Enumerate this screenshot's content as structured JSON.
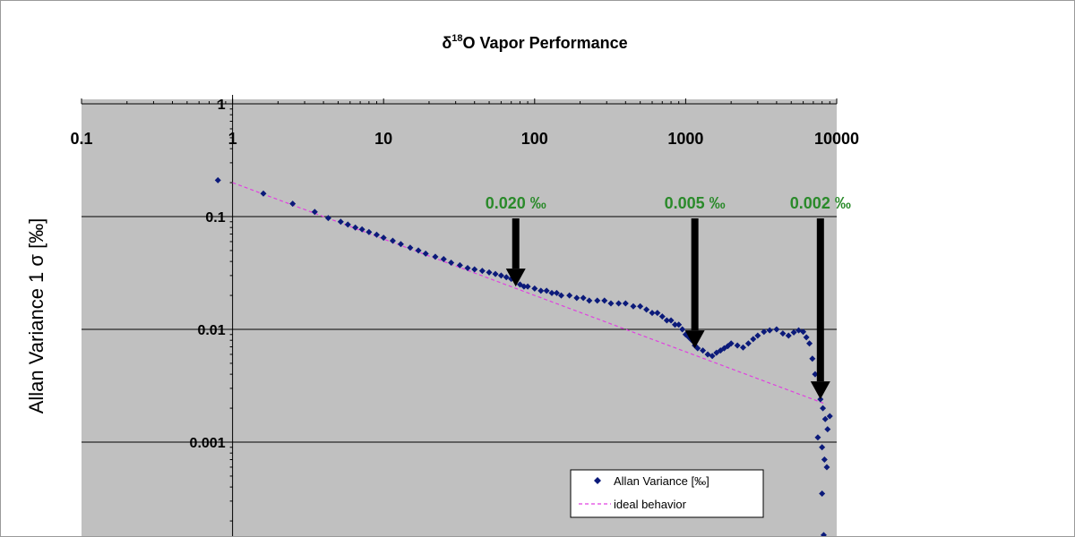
{
  "colors": {
    "plot_background": "#c0c0c0",
    "series_point": "#0b1a7a",
    "ideal_line": "#e040e0",
    "annotation_text": "#2a8a2a",
    "arrow": "#000000",
    "gridline": "#000000"
  },
  "chart_data": {
    "type": "scatter",
    "title_symbol": "δ",
    "title_superscript": "18",
    "title_rest": "O Vapor Performance",
    "xlabel": "",
    "ylabel": "Allan Variance 1 σ [‰]",
    "x_scale": "log",
    "y_scale": "log",
    "xlim": [
      0.1,
      10000
    ],
    "ylim": [
      0.0001,
      1
    ],
    "x_tick_labels": [
      "0.1",
      "1",
      "10",
      "100",
      "1000",
      "10000"
    ],
    "y_tick_labels": [
      "1",
      "0.1",
      "0.01",
      "0.001"
    ],
    "x_ticks": [
      0.1,
      1,
      10,
      100,
      1000,
      10000
    ],
    "y_ticks": [
      1,
      0.1,
      0.01,
      0.001
    ],
    "x_axis_position": "top",
    "grid": "horizontal major lines",
    "legend_position": "bottom-right",
    "series": [
      {
        "name": "Allan Variance [‰]",
        "marker": "diamond",
        "x": [
          0.8,
          1.6,
          2.5,
          3.5,
          4.3,
          5.2,
          5.8,
          6.5,
          7.2,
          8,
          9,
          10,
          11.5,
          13,
          15,
          17,
          19,
          22,
          25,
          28,
          32,
          36,
          40,
          45,
          50,
          55,
          60,
          65,
          70,
          75,
          80,
          85,
          90,
          100,
          110,
          120,
          130,
          140,
          150,
          170,
          190,
          210,
          230,
          260,
          290,
          320,
          360,
          400,
          450,
          500,
          550,
          600,
          650,
          700,
          750,
          800,
          850,
          900,
          950,
          1000,
          1050,
          1100,
          1150,
          1200,
          1300,
          1400,
          1500,
          1600,
          1700,
          1800,
          1900,
          2000,
          2200,
          2400,
          2600,
          2800,
          3000,
          3300,
          3600,
          4000,
          4400,
          4800,
          5200,
          5600,
          6000,
          6300,
          6600,
          6900,
          7200,
          7500,
          7800,
          8100,
          8400,
          8700,
          9000,
          7500,
          8000,
          8300,
          8600,
          8000,
          8200
        ],
        "y": [
          0.21,
          0.16,
          0.13,
          0.11,
          0.097,
          0.09,
          0.085,
          0.08,
          0.077,
          0.073,
          0.069,
          0.065,
          0.061,
          0.057,
          0.053,
          0.05,
          0.047,
          0.044,
          0.042,
          0.039,
          0.037,
          0.035,
          0.034,
          0.033,
          0.032,
          0.031,
          0.03,
          0.029,
          0.028,
          0.027,
          0.025,
          0.024,
          0.024,
          0.023,
          0.022,
          0.022,
          0.021,
          0.021,
          0.02,
          0.02,
          0.019,
          0.019,
          0.018,
          0.018,
          0.018,
          0.017,
          0.017,
          0.017,
          0.016,
          0.016,
          0.015,
          0.014,
          0.014,
          0.013,
          0.012,
          0.012,
          0.011,
          0.011,
          0.01,
          0.009,
          0.0085,
          0.008,
          0.0072,
          0.0068,
          0.0065,
          0.006,
          0.0058,
          0.0062,
          0.0065,
          0.0068,
          0.0071,
          0.0075,
          0.0072,
          0.0069,
          0.0075,
          0.0082,
          0.0088,
          0.0095,
          0.0098,
          0.01,
          0.0092,
          0.0088,
          0.0094,
          0.0098,
          0.0095,
          0.0085,
          0.0075,
          0.0055,
          0.004,
          0.003,
          0.0024,
          0.002,
          0.0016,
          0.0013,
          0.0017,
          0.0011,
          0.0009,
          0.0007,
          0.0006,
          0.00035,
          0.00015
        ]
      },
      {
        "name": "ideal behavior",
        "type": "line",
        "style": "dashed",
        "x": [
          1,
          8500
        ],
        "y": [
          0.2,
          0.00217
        ]
      }
    ],
    "annotations": [
      {
        "text": "0.020 ‰",
        "x": 75,
        "y": 0.024
      },
      {
        "text": "0.005 ‰",
        "x": 1150,
        "y": 0.0068
      },
      {
        "text": "0.002 ‰",
        "x": 7800,
        "y": 0.0024
      }
    ]
  }
}
